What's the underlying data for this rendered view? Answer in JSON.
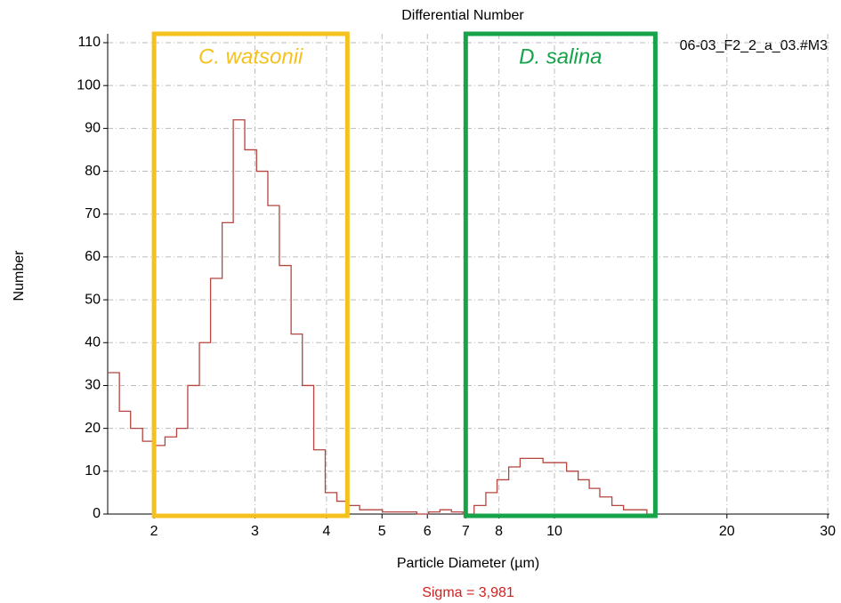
{
  "chart_data": {
    "type": "line",
    "step": true,
    "title": "Differential Number",
    "x_label": "Particle Diameter (µm)",
    "y_label": "Number",
    "sample_label": "06-03_F2_2_a_03.#M3",
    "footnote": "Sigma = 3,981",
    "x_log": true,
    "grid": true,
    "xlim": [
      1.66,
      30.2
    ],
    "ylim": [
      0,
      110
    ],
    "xticks": [
      2,
      3,
      4,
      5,
      6,
      7,
      8,
      10,
      20,
      30
    ],
    "yticks": [
      0,
      10,
      20,
      30,
      40,
      50,
      60,
      70,
      80,
      90,
      100,
      110
    ],
    "regions": [
      {
        "label": "C. watsonii",
        "x": [
          2,
          4.35
        ],
        "color": "#f5c11f"
      },
      {
        "label": "D. salina",
        "x": [
          7,
          15
        ],
        "color": "#16a34a"
      }
    ],
    "series": [
      {
        "color": "#b5453f",
        "x": [
          1.66,
          1.74,
          1.82,
          1.91,
          2.0,
          2.09,
          2.19,
          2.29,
          2.4,
          2.51,
          2.63,
          2.75,
          2.88,
          3.02,
          3.16,
          3.31,
          3.47,
          3.63,
          3.8,
          3.98,
          4.17,
          4.37,
          4.57,
          4.79,
          5.01,
          5.25,
          5.5,
          5.75,
          6.03,
          6.31,
          6.61,
          6.92,
          7.24,
          7.59,
          7.94,
          8.32,
          8.71,
          9.12,
          9.55,
          10.0,
          10.5,
          11.0,
          11.5,
          12.0,
          12.6,
          13.2,
          13.8,
          14.5,
          15.1
        ],
        "values": [
          33,
          24,
          20,
          17,
          16,
          18,
          20,
          30,
          40,
          55,
          68,
          92,
          85,
          80,
          72,
          58,
          42,
          30,
          15,
          5,
          3,
          2,
          1,
          1,
          0.5,
          0.5,
          0.5,
          0,
          0.5,
          1,
          0.5,
          0,
          2,
          5,
          8,
          11,
          13,
          13,
          12,
          12,
          10,
          8,
          6,
          4,
          2,
          1,
          1,
          0,
          0
        ]
      }
    ]
  }
}
